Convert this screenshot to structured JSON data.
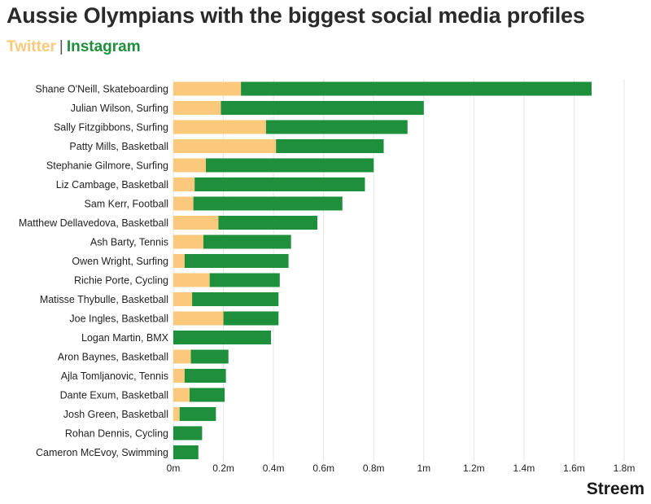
{
  "chart_data": {
    "type": "bar",
    "orientation": "horizontal",
    "stacked": true,
    "title": "Aussie Olympians with the biggest social media profiles",
    "legend_separator": "|",
    "categories": [
      "Shane O'Neill, Skateboarding",
      "Julian Wilson, Surfing",
      "Sally Fitzgibbons, Surfing",
      "Patty Mills, Basketball",
      "Stephanie Gilmore, Surfing",
      "Liz Cambage, Basketball",
      "Sam Kerr, Football",
      "Matthew Dellavedova, Basketball",
      "Ash Barty, Tennis",
      "Owen Wright, Surfing",
      "Richie Porte, Cycling",
      "Matisse Thybulle, Basketball",
      "Joe Ingles, Basketball",
      "Logan Martin, BMX",
      "Aron Baynes, Basketball",
      "Ajla Tomljanovic, Tennis",
      "Dante Exum, Basketball",
      "Josh Green, Basketball",
      "Rohan Dennis, Cycling",
      "Cameron McEvoy, Swimming"
    ],
    "series": [
      {
        "name": "Twitter",
        "color": "#fbc97b",
        "values": [
          270000,
          190000,
          370000,
          410000,
          130000,
          85000,
          80000,
          180000,
          120000,
          45000,
          145000,
          75000,
          200000,
          0,
          70000,
          45000,
          65000,
          25000,
          0,
          0
        ]
      },
      {
        "name": "Instagram",
        "color": "#1e8f3a",
        "values": [
          1400000,
          810000,
          565000,
          430000,
          670000,
          680000,
          595000,
          395000,
          350000,
          415000,
          280000,
          345000,
          220000,
          390000,
          150000,
          165000,
          140000,
          145000,
          115000,
          100000
        ]
      }
    ],
    "x_ticks": [
      {
        "value": 0,
        "label": "0m"
      },
      {
        "value": 200000,
        "label": "0.2m"
      },
      {
        "value": 400000,
        "label": "0.4m"
      },
      {
        "value": 600000,
        "label": "0.6m"
      },
      {
        "value": 800000,
        "label": "0.8m"
      },
      {
        "value": 1000000,
        "label": "1m"
      },
      {
        "value": 1200000,
        "label": "1.2m"
      },
      {
        "value": 1400000,
        "label": "1.4m"
      },
      {
        "value": 1600000,
        "label": "1.6m"
      },
      {
        "value": 1800000,
        "label": "1.8m"
      }
    ],
    "xlim": [
      0,
      1800000
    ],
    "grid": true,
    "gridline_color": "#e6e6e6"
  },
  "brand": {
    "name": "Streem"
  }
}
